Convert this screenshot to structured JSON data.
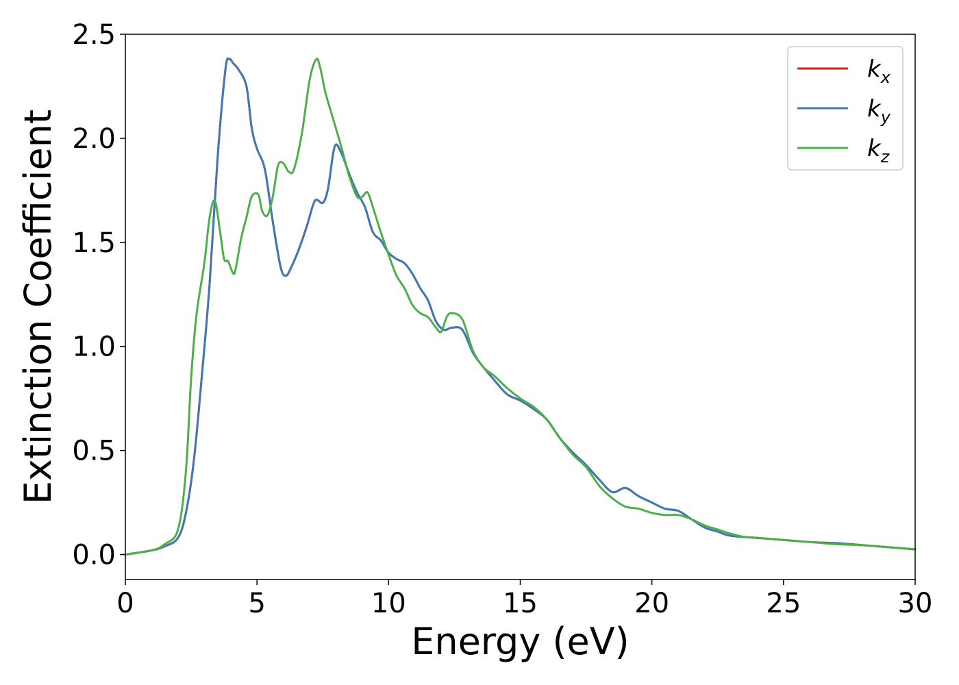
{
  "chart_data": {
    "type": "line",
    "title": "",
    "xlabel": "Energy (eV)",
    "ylabel": "Extinction Coefficient",
    "xlim": [
      0,
      30
    ],
    "ylim": [
      -0.12,
      2.5
    ],
    "xticks": [
      0,
      5,
      10,
      15,
      20,
      25,
      30
    ],
    "xtick_labels": [
      "0",
      "5",
      "10",
      "15",
      "20",
      "25",
      "30"
    ],
    "yticks": [
      0.0,
      0.5,
      1.0,
      1.5,
      2.0,
      2.5
    ],
    "ytick_labels": [
      "0.0",
      "0.5",
      "1.0",
      "1.5",
      "2.0",
      "2.5"
    ],
    "grid": false,
    "legend_position": "top-right",
    "series": [
      {
        "name": "k_x",
        "legend_base": "k",
        "legend_sub": "x",
        "color": "#e41a1c",
        "x": [
          0,
          1,
          1.5,
          2,
          2.3,
          2.6,
          2.9,
          3.2,
          3.5,
          3.8,
          3.95,
          4.1,
          4.3,
          4.6,
          4.8,
          5.0,
          5.3,
          5.6,
          5.9,
          6.1,
          6.3,
          6.6,
          6.9,
          7.2,
          7.5,
          7.7,
          7.95,
          8.2,
          8.5,
          8.8,
          9.1,
          9.4,
          9.7,
          10.0,
          10.3,
          10.6,
          10.9,
          11.2,
          11.5,
          11.8,
          12.1,
          12.4,
          12.8,
          13.2,
          13.6,
          14.0,
          14.5,
          15.0,
          15.5,
          16.0,
          16.5,
          17.0,
          17.5,
          18.0,
          18.5,
          19.0,
          19.5,
          20.0,
          20.5,
          21.0,
          21.5,
          22.0,
          22.5,
          23.0,
          24.0,
          25.0,
          26.0,
          27.0,
          28.0,
          29.0,
          30.0
        ],
        "y": [
          0.0,
          0.02,
          0.04,
          0.08,
          0.2,
          0.45,
          0.85,
          1.3,
          1.9,
          2.33,
          2.38,
          2.36,
          2.33,
          2.25,
          2.05,
          1.95,
          1.85,
          1.6,
          1.38,
          1.34,
          1.38,
          1.47,
          1.58,
          1.7,
          1.69,
          1.76,
          1.96,
          1.93,
          1.83,
          1.74,
          1.67,
          1.55,
          1.51,
          1.45,
          1.42,
          1.4,
          1.35,
          1.28,
          1.22,
          1.12,
          1.08,
          1.09,
          1.08,
          0.97,
          0.9,
          0.84,
          0.77,
          0.74,
          0.7,
          0.65,
          0.56,
          0.49,
          0.43,
          0.36,
          0.3,
          0.32,
          0.28,
          0.25,
          0.22,
          0.21,
          0.17,
          0.13,
          0.11,
          0.09,
          0.08,
          0.07,
          0.06,
          0.055,
          0.045,
          0.035,
          0.025
        ]
      },
      {
        "name": "k_y",
        "legend_base": "k",
        "legend_sub": "y",
        "color": "#3f7ab6",
        "x": [
          0,
          1,
          1.5,
          2,
          2.3,
          2.6,
          2.9,
          3.2,
          3.5,
          3.8,
          3.95,
          4.1,
          4.3,
          4.6,
          4.8,
          5.0,
          5.3,
          5.6,
          5.9,
          6.1,
          6.3,
          6.6,
          6.9,
          7.2,
          7.5,
          7.7,
          7.95,
          8.2,
          8.5,
          8.8,
          9.1,
          9.4,
          9.7,
          10.0,
          10.3,
          10.6,
          10.9,
          11.2,
          11.5,
          11.8,
          12.1,
          12.4,
          12.8,
          13.2,
          13.6,
          14.0,
          14.5,
          15.0,
          15.5,
          16.0,
          16.5,
          17.0,
          17.5,
          18.0,
          18.5,
          19.0,
          19.5,
          20.0,
          20.5,
          21.0,
          21.5,
          22.0,
          22.5,
          23.0,
          24.0,
          25.0,
          26.0,
          27.0,
          28.0,
          29.0,
          30.0
        ],
        "y": [
          0.0,
          0.02,
          0.04,
          0.08,
          0.2,
          0.45,
          0.85,
          1.3,
          1.9,
          2.33,
          2.38,
          2.36,
          2.33,
          2.25,
          2.05,
          1.95,
          1.85,
          1.6,
          1.38,
          1.34,
          1.38,
          1.47,
          1.58,
          1.7,
          1.69,
          1.76,
          1.96,
          1.93,
          1.83,
          1.74,
          1.67,
          1.55,
          1.51,
          1.45,
          1.42,
          1.4,
          1.35,
          1.28,
          1.22,
          1.12,
          1.08,
          1.09,
          1.08,
          0.97,
          0.9,
          0.84,
          0.77,
          0.74,
          0.7,
          0.65,
          0.56,
          0.49,
          0.43,
          0.36,
          0.3,
          0.32,
          0.28,
          0.25,
          0.22,
          0.21,
          0.17,
          0.13,
          0.11,
          0.09,
          0.08,
          0.07,
          0.06,
          0.055,
          0.045,
          0.035,
          0.025
        ]
      },
      {
        "name": "k_z",
        "legend_base": "k",
        "legend_sub": "z",
        "color": "#4daf4a",
        "x": [
          0,
          1,
          1.5,
          2,
          2.3,
          2.5,
          2.7,
          3.0,
          3.2,
          3.4,
          3.6,
          3.75,
          3.9,
          4.1,
          4.2,
          4.4,
          4.6,
          4.8,
          5.05,
          5.2,
          5.4,
          5.6,
          5.8,
          6.0,
          6.2,
          6.4,
          6.7,
          7.0,
          7.25,
          7.4,
          7.6,
          7.9,
          8.2,
          8.5,
          8.8,
          9.0,
          9.2,
          9.4,
          9.7,
          10.0,
          10.3,
          10.6,
          10.9,
          11.2,
          11.5,
          11.8,
          12.0,
          12.2,
          12.4,
          12.8,
          13.2,
          13.6,
          14.0,
          14.5,
          15.0,
          15.5,
          16.0,
          16.5,
          17.0,
          17.5,
          18.0,
          18.5,
          19.0,
          19.5,
          20.0,
          20.5,
          21.0,
          21.5,
          22.0,
          22.5,
          23.0,
          23.5,
          24.0,
          25.0,
          26.0,
          27.0,
          28.0,
          29.0,
          30.0
        ],
        "y": [
          0.0,
          0.02,
          0.05,
          0.12,
          0.4,
          0.85,
          1.15,
          1.4,
          1.62,
          1.7,
          1.55,
          1.42,
          1.41,
          1.35,
          1.38,
          1.52,
          1.62,
          1.72,
          1.73,
          1.65,
          1.63,
          1.72,
          1.87,
          1.88,
          1.84,
          1.85,
          2.02,
          2.28,
          2.38,
          2.34,
          2.22,
          2.09,
          1.96,
          1.82,
          1.72,
          1.72,
          1.74,
          1.67,
          1.55,
          1.44,
          1.34,
          1.28,
          1.2,
          1.16,
          1.14,
          1.09,
          1.07,
          1.14,
          1.16,
          1.13,
          0.98,
          0.9,
          0.86,
          0.8,
          0.75,
          0.71,
          0.65,
          0.56,
          0.48,
          0.42,
          0.33,
          0.27,
          0.23,
          0.22,
          0.2,
          0.19,
          0.19,
          0.17,
          0.14,
          0.12,
          0.1,
          0.085,
          0.08,
          0.07,
          0.06,
          0.05,
          0.045,
          0.035,
          0.025
        ]
      }
    ]
  }
}
